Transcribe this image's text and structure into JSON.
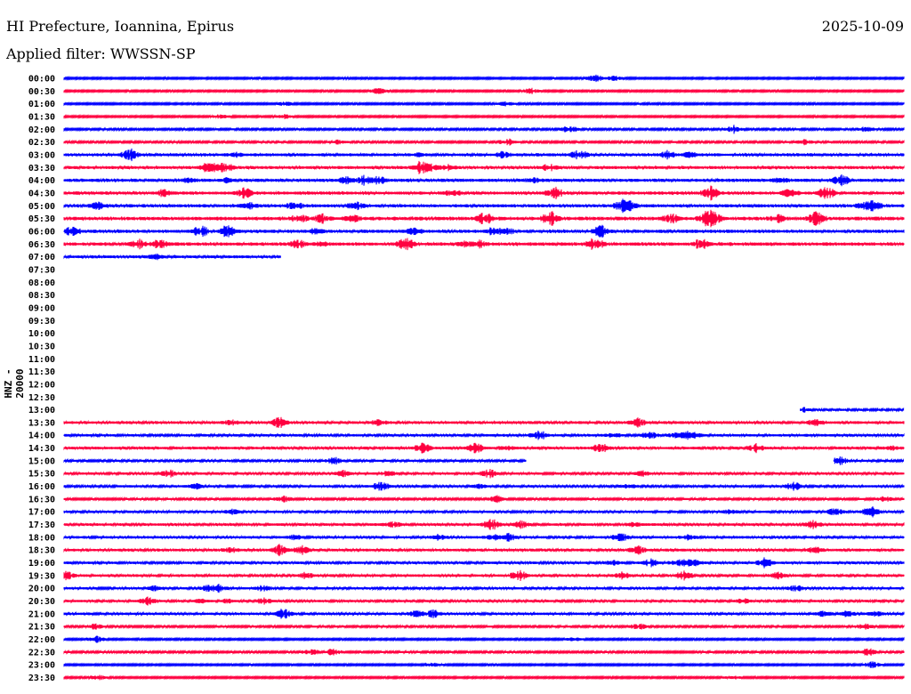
{
  "header": {
    "title": "HI Prefecture, Ioannina, Epirus",
    "filter": "Applied filter: WWSSN-SP",
    "date": "2025-10-09"
  },
  "chart_data": {
    "type": "line",
    "title": "HI Prefecture, Ioannina, Epirus",
    "subtitle": "Applied filter: WWSSN-SP",
    "ylabel": "HNZ - 20000",
    "row_minutes": 30,
    "colors": {
      "hour": "#0000ff",
      "half": "#ff0040"
    },
    "rows": [
      {
        "label": "00:00",
        "start": 0,
        "end": 30,
        "activity": 0.3
      },
      {
        "label": "00:30",
        "start": 0,
        "end": 30,
        "activity": 0.3
      },
      {
        "label": "01:00",
        "start": 0,
        "end": 30,
        "activity": 0.3
      },
      {
        "label": "01:30",
        "start": 0,
        "end": 30,
        "activity": 0.3
      },
      {
        "label": "02:00",
        "start": 0,
        "end": 30,
        "activity": 0.4
      },
      {
        "label": "02:30",
        "start": 0,
        "end": 30,
        "activity": 0.4
      },
      {
        "label": "03:00",
        "start": 0,
        "end": 30,
        "activity": 0.9
      },
      {
        "label": "03:30",
        "start": 0,
        "end": 30,
        "activity": 0.9
      },
      {
        "label": "04:00",
        "start": 0,
        "end": 30,
        "activity": 1.0
      },
      {
        "label": "04:30",
        "start": 0,
        "end": 30,
        "activity": 1.0
      },
      {
        "label": "05:00",
        "start": 0,
        "end": 30,
        "activity": 1.0
      },
      {
        "label": "05:30",
        "start": 0,
        "end": 30,
        "activity": 1.2
      },
      {
        "label": "06:00",
        "start": 0,
        "end": 30,
        "activity": 1.0
      },
      {
        "label": "06:30",
        "start": 0,
        "end": 30,
        "activity": 1.1
      },
      {
        "label": "07:00",
        "start": 0,
        "end": 7.75,
        "activity": 0.8
      },
      {
        "label": "07:30",
        "start": 0,
        "end": 0,
        "activity": 0
      },
      {
        "label": "08:00",
        "start": 0,
        "end": 0,
        "activity": 0
      },
      {
        "label": "08:30",
        "start": 0,
        "end": 0,
        "activity": 0
      },
      {
        "label": "09:00",
        "start": 0,
        "end": 0,
        "activity": 0
      },
      {
        "label": "09:30",
        "start": 0,
        "end": 0,
        "activity": 0
      },
      {
        "label": "10:00",
        "start": 0,
        "end": 0,
        "activity": 0
      },
      {
        "label": "10:30",
        "start": 0,
        "end": 0,
        "activity": 0
      },
      {
        "label": "11:00",
        "start": 0,
        "end": 0,
        "activity": 0
      },
      {
        "label": "11:30",
        "start": 0,
        "end": 0,
        "activity": 0
      },
      {
        "label": "12:00",
        "start": 0,
        "end": 0,
        "activity": 0
      },
      {
        "label": "12:30",
        "start": 0,
        "end": 0,
        "activity": 0
      },
      {
        "label": "13:00",
        "start": 26.3,
        "end": 30,
        "activity": 0.5
      },
      {
        "label": "13:30",
        "start": 0,
        "end": 30,
        "activity": 0.8
      },
      {
        "label": "14:00",
        "start": 0,
        "end": 30,
        "activity": 0.7
      },
      {
        "label": "14:30",
        "start": 0,
        "end": 30,
        "activity": 0.8
      },
      {
        "label": "15:00",
        "start": 0,
        "end": 16.5,
        "resume": 27.5,
        "activity": 0.5
      },
      {
        "label": "15:30",
        "start": 0,
        "end": 30,
        "activity": 0.6
      },
      {
        "label": "16:00",
        "start": 0,
        "end": 30,
        "activity": 0.6
      },
      {
        "label": "16:30",
        "start": 0,
        "end": 30,
        "activity": 0.4
      },
      {
        "label": "17:00",
        "start": 0,
        "end": 30,
        "activity": 0.6
      },
      {
        "label": "17:30",
        "start": 0,
        "end": 30,
        "activity": 0.7
      },
      {
        "label": "18:00",
        "start": 0,
        "end": 30,
        "activity": 0.7
      },
      {
        "label": "18:30",
        "start": 0,
        "end": 30,
        "activity": 0.8
      },
      {
        "label": "19:00",
        "start": 0,
        "end": 30,
        "activity": 0.7
      },
      {
        "label": "19:30",
        "start": 0,
        "end": 30,
        "activity": 0.7
      },
      {
        "label": "20:00",
        "start": 0,
        "end": 30,
        "activity": 0.6
      },
      {
        "label": "20:30",
        "start": 0,
        "end": 30,
        "activity": 0.6
      },
      {
        "label": "21:00",
        "start": 0,
        "end": 30,
        "activity": 0.7
      },
      {
        "label": "21:30",
        "start": 0,
        "end": 30,
        "activity": 0.4
      },
      {
        "label": "22:00",
        "start": 0,
        "end": 30,
        "activity": 0.3
      },
      {
        "label": "22:30",
        "start": 0,
        "end": 30,
        "activity": 0.4
      },
      {
        "label": "23:00",
        "start": 0,
        "end": 30,
        "activity": 0.3
      },
      {
        "label": "23:30",
        "start": 0,
        "end": 30,
        "activity": 0.3
      }
    ]
  }
}
